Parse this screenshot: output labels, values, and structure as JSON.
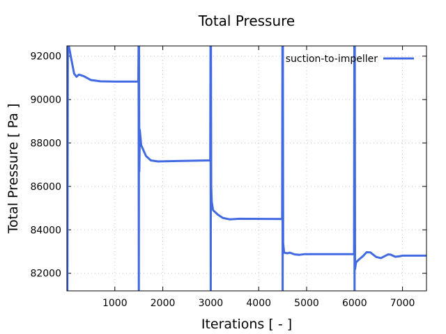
{
  "chart_data": {
    "type": "line",
    "title": "Total Pressure",
    "xlabel": "Iterations [ - ]",
    "ylabel": "Total Pressure [ Pa ]",
    "xlim": [
      0,
      7500
    ],
    "ylim": [
      81190,
      92470
    ],
    "xticks": [
      1000,
      2000,
      3000,
      4000,
      5000,
      6000,
      7000
    ],
    "yticks": [
      82000,
      84000,
      86000,
      88000,
      90000,
      92000
    ],
    "grid": true,
    "legend_position": "top-right",
    "series": [
      {
        "name": "suction-to-impeller",
        "color": "#4169e1",
        "points": [
          [
            0,
            78000
          ],
          [
            5,
            96000
          ],
          [
            10,
            80000
          ],
          [
            20,
            95000
          ],
          [
            40,
            93000
          ],
          [
            80,
            92000
          ],
          [
            150,
            91200
          ],
          [
            200,
            91050
          ],
          [
            250,
            91150
          ],
          [
            350,
            91080
          ],
          [
            500,
            90900
          ],
          [
            700,
            90840
          ],
          [
            1000,
            90830
          ],
          [
            1490,
            90830
          ],
          [
            1495,
            96000
          ],
          [
            1500,
            78000
          ],
          [
            1505,
            95000
          ],
          [
            1510,
            86700
          ],
          [
            1520,
            88600
          ],
          [
            1550,
            87900
          ],
          [
            1650,
            87400
          ],
          [
            1750,
            87200
          ],
          [
            1900,
            87150
          ],
          [
            2500,
            87180
          ],
          [
            2990,
            87200
          ],
          [
            2995,
            96000
          ],
          [
            3000,
            78000
          ],
          [
            3005,
            95000
          ],
          [
            3010,
            86000
          ],
          [
            3020,
            85300
          ],
          [
            3050,
            84900
          ],
          [
            3150,
            84700
          ],
          [
            3250,
            84550
          ],
          [
            3400,
            84480
          ],
          [
            3600,
            84510
          ],
          [
            4490,
            84500
          ],
          [
            4495,
            96000
          ],
          [
            4500,
            78000
          ],
          [
            4505,
            95000
          ],
          [
            4510,
            83400
          ],
          [
            4530,
            82950
          ],
          [
            4600,
            82920
          ],
          [
            4650,
            82950
          ],
          [
            4750,
            82870
          ],
          [
            4850,
            82850
          ],
          [
            4950,
            82880
          ],
          [
            5990,
            82880
          ],
          [
            5995,
            96000
          ],
          [
            6000,
            78000
          ],
          [
            6005,
            95000
          ],
          [
            6010,
            82200
          ],
          [
            6030,
            82500
          ],
          [
            6100,
            82650
          ],
          [
            6180,
            82800
          ],
          [
            6250,
            82970
          ],
          [
            6330,
            82960
          ],
          [
            6450,
            82750
          ],
          [
            6550,
            82700
          ],
          [
            6700,
            82870
          ],
          [
            6750,
            82860
          ],
          [
            6850,
            82760
          ],
          [
            6950,
            82790
          ],
          [
            7000,
            82810
          ],
          [
            7500,
            82810
          ]
        ]
      }
    ]
  }
}
